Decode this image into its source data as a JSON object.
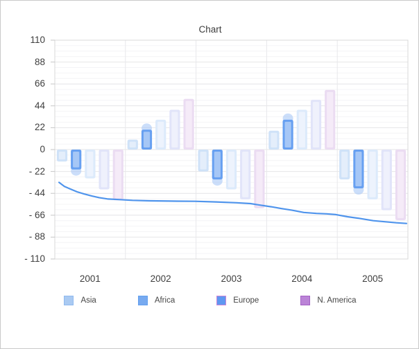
{
  "window": {
    "border_color": "#c9c9c9",
    "background": "#ffffff"
  },
  "chart_data": {
    "type": "bar",
    "subtype": "grouped columns with overlay line",
    "title": "Chart",
    "categories": [
      "2001",
      "2002",
      "2003",
      "2004",
      "2005"
    ],
    "y_axis": {
      "min": -110,
      "max": 110,
      "major_step": 22,
      "minor_step": 5.5,
      "tick_labels": [
        "110",
        "88",
        "66",
        "44",
        "22",
        "0",
        "- 22",
        "- 44",
        "- 66",
        "- 88",
        "- 110"
      ]
    },
    "grid": {
      "horizontal_major": true,
      "horizontal_minor": true,
      "vertical_group_lines": true
    },
    "legend_position": "bottom",
    "series": [
      {
        "id": "bar-series-1",
        "legend_label": "Asia",
        "values": [
          -12,
          10,
          -22,
          19,
          -30
        ],
        "color_outer": "#cfe2f8",
        "color_inner": "#e4eefb",
        "highlighted": false
      },
      {
        "id": "bar-series-2",
        "legend_label": "Africa",
        "values": [
          -20,
          20,
          -30,
          30,
          -39
        ],
        "color_outer": "#67a0f1",
        "color_inner": "#a6c7f6",
        "highlighted": true,
        "cap_color": "rgba(168,200,246,0.6)"
      },
      {
        "id": "bar-series-3",
        "legend_label": "Europe",
        "values": [
          -29,
          30,
          -40,
          40,
          -50
        ],
        "color_outer": "#dceafb",
        "color_inner": "#edf3fd",
        "highlighted": false
      },
      {
        "id": "bar-series-4",
        "legend_label": "",
        "values": [
          -40,
          40,
          -50,
          50,
          -61
        ],
        "color_outer": "#e1e4f9",
        "color_inner": "#eff1fc",
        "highlighted": false
      },
      {
        "id": "bar-series-5",
        "legend_label": "N. America",
        "values": [
          -51,
          51,
          -59,
          60,
          -71
        ],
        "color_outer": "#ebdcf2",
        "color_inner": "#f5ebf8",
        "highlighted": false
      }
    ],
    "line_series": {
      "color": "#4f94ec",
      "points_frac_value": [
        [
          0.012,
          -33
        ],
        [
          0.027,
          -37
        ],
        [
          0.043,
          -39.5
        ],
        [
          0.063,
          -42.5
        ],
        [
          0.082,
          -44.5
        ],
        [
          0.106,
          -46.8
        ],
        [
          0.126,
          -48.3
        ],
        [
          0.151,
          -49.7
        ],
        [
          0.181,
          -50.3
        ],
        [
          0.22,
          -51
        ],
        [
          0.269,
          -51.5
        ],
        [
          0.328,
          -51.8
        ],
        [
          0.397,
          -52
        ],
        [
          0.456,
          -52.6
        ],
        [
          0.515,
          -53.5
        ],
        [
          0.554,
          -54.3
        ],
        [
          0.578,
          -55.6
        ],
        [
          0.613,
          -57.5
        ],
        [
          0.642,
          -59.3
        ],
        [
          0.672,
          -61
        ],
        [
          0.705,
          -63.2
        ],
        [
          0.741,
          -64.2
        ],
        [
          0.77,
          -64.6
        ],
        [
          0.796,
          -65.4
        ],
        [
          0.829,
          -67.5
        ],
        [
          0.859,
          -69
        ],
        [
          0.902,
          -71.5
        ],
        [
          0.937,
          -72.6
        ],
        [
          0.967,
          -73.6
        ],
        [
          0.996,
          -74.3
        ]
      ]
    }
  },
  "legend": {
    "items": [
      {
        "label": "Asia",
        "fill": "#aacaf2",
        "border": "#8fb9ef"
      },
      {
        "label": "Africa",
        "fill": "#77aaf0",
        "border": "#63a0ee"
      },
      {
        "label": "Europe",
        "fill": "#5f97f1",
        "border": "#cc85d6"
      },
      {
        "label": "N. America",
        "fill": "#bb84d7",
        "border": "#a360c4"
      }
    ]
  },
  "colors": {
    "grid_minor": "#f4f4f6",
    "grid_major": "#e4e4e7",
    "grid_vertical": "#e8e8eb",
    "plot_frame": "#d9d9d9",
    "tick_mark": "#c6c6c6",
    "text": "#3e3e3e"
  }
}
